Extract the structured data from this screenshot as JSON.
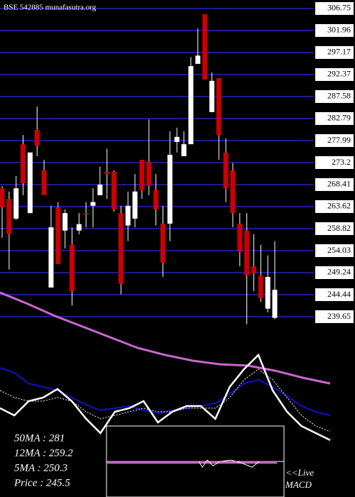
{
  "chart_data": [
    {
      "type": "candlestick",
      "title": "BSE 542885 munafasutra.org",
      "ylim": [
        237.8,
        308.6
      ],
      "yticks": [
        306.75,
        301.96,
        297.17,
        292.37,
        287.58,
        282.79,
        277.99,
        273.2,
        268.41,
        263.62,
        258.82,
        254.03,
        249.24,
        244.44,
        239.65
      ],
      "grid": true,
      "grid_color": "#1c1c8c",
      "up_color": "#ffffff",
      "down_color": "#cc0000",
      "open": [
        267.6,
        265.3,
        261.0,
        277.2,
        262.2,
        280.3,
        271.5,
        246.0,
        263.5,
        258.4,
        255.3,
        258.4,
        262.2,
        263.8,
        266.1,
        271.2,
        271.2,
        262.2,
        259.5,
        261.0,
        273.8,
        273.4,
        267.2,
        259.9,
        259.9,
        277.7,
        274.6,
        277.2,
        294.7,
        305.5,
        284.2,
        291.6,
        275.4,
        271.5,
        259.9,
        258.4,
        250.6,
        248.6,
        241.4,
        239.4
      ],
      "high": [
        268.1,
        266.9,
        270.3,
        279.2,
        275.4,
        285.4,
        273.8,
        263.8,
        264.6,
        263.0,
        259.1,
        262.2,
        264.6,
        267.6,
        272.3,
        276.2,
        271.5,
        263.8,
        266.9,
        270.7,
        273.8,
        282.6,
        270.7,
        263.8,
        280.0,
        280.8,
        280.0,
        296.2,
        302.4,
        305.5,
        292.8,
        291.6,
        278.5,
        273.1,
        262.2,
        262.2,
        257.6,
        255.3,
        253.0,
        256.1
      ],
      "low": [
        256.8,
        249.9,
        260.7,
        266.1,
        262.2,
        274.6,
        266.1,
        246.0,
        251.1,
        254.5,
        242.1,
        257.6,
        259.1,
        259.1,
        266.1,
        265.3,
        262.5,
        244.5,
        256.1,
        259.1,
        265.3,
        266.1,
        259.5,
        248.3,
        256.1,
        275.4,
        274.6,
        277.2,
        294.7,
        291.3,
        284.2,
        273.8,
        264.6,
        259.1,
        250.6,
        238.0,
        245.2,
        242.9,
        240.6,
        239.1
      ],
      "close": [
        263.5,
        257.6,
        267.6,
        268.7,
        275.4,
        276.9,
        266.1,
        259.1,
        251.1,
        262.2,
        245.2,
        259.8,
        261.9,
        264.6,
        268.4,
        270.7,
        263.0,
        246.8,
        263.8,
        266.9,
        267.2,
        268.1,
        263.0,
        251.4,
        274.9,
        278.8,
        277.2,
        294.2,
        296.5,
        291.3,
        291.0,
        279.2,
        267.6,
        262.2,
        253.7,
        248.6,
        249.1,
        243.7,
        248.3,
        245.5
      ]
    },
    {
      "type": "line",
      "ylim": [
        0,
        100
      ],
      "series": [
        {
          "color": "#cc66cc",
          "width": 3,
          "values": [
            96,
            90.7,
            85,
            80,
            75,
            70,
            66.7,
            64,
            62.3,
            61.7,
            59.3,
            56,
            53.3
          ]
        },
        {
          "color": "#1111cc",
          "width": 2,
          "values": [
            60.7,
            58.3,
            53.3,
            51.7,
            50,
            46.7,
            43.3,
            40.7,
            41.7,
            42.7,
            40.7,
            39.3,
            40.7,
            41.7,
            42.7,
            44,
            48.3,
            53.3,
            55,
            51.7,
            47.3,
            42.7,
            40,
            38.3
          ]
        },
        {
          "color": "#ffffff",
          "width": 1,
          "dash": true,
          "values": [
            50,
            46.7,
            45,
            45,
            46.7,
            45,
            40,
            36.7,
            38.3,
            40,
            41.7,
            40,
            40,
            41.7,
            41.7,
            41.7,
            46.7,
            55,
            60,
            55,
            46.7,
            38.3,
            33.3,
            30.7
          ]
        },
        {
          "color": "#ffffff",
          "width": 2.5,
          "values": [
            41.7,
            38.3,
            45,
            46.7,
            50.7,
            45,
            36.7,
            30,
            40,
            41.7,
            45,
            35,
            40,
            42.7,
            42.7,
            36.7,
            51.7,
            60,
            66.7,
            50,
            40,
            33.3,
            30,
            26.7
          ]
        }
      ],
      "annotations": [
        "50MA : 281",
        "12MA : 259.2",
        "5MA : 250.3",
        "Price   : 245.5"
      ],
      "macd_label": [
        "<<Live",
        "MACD"
      ]
    }
  ]
}
